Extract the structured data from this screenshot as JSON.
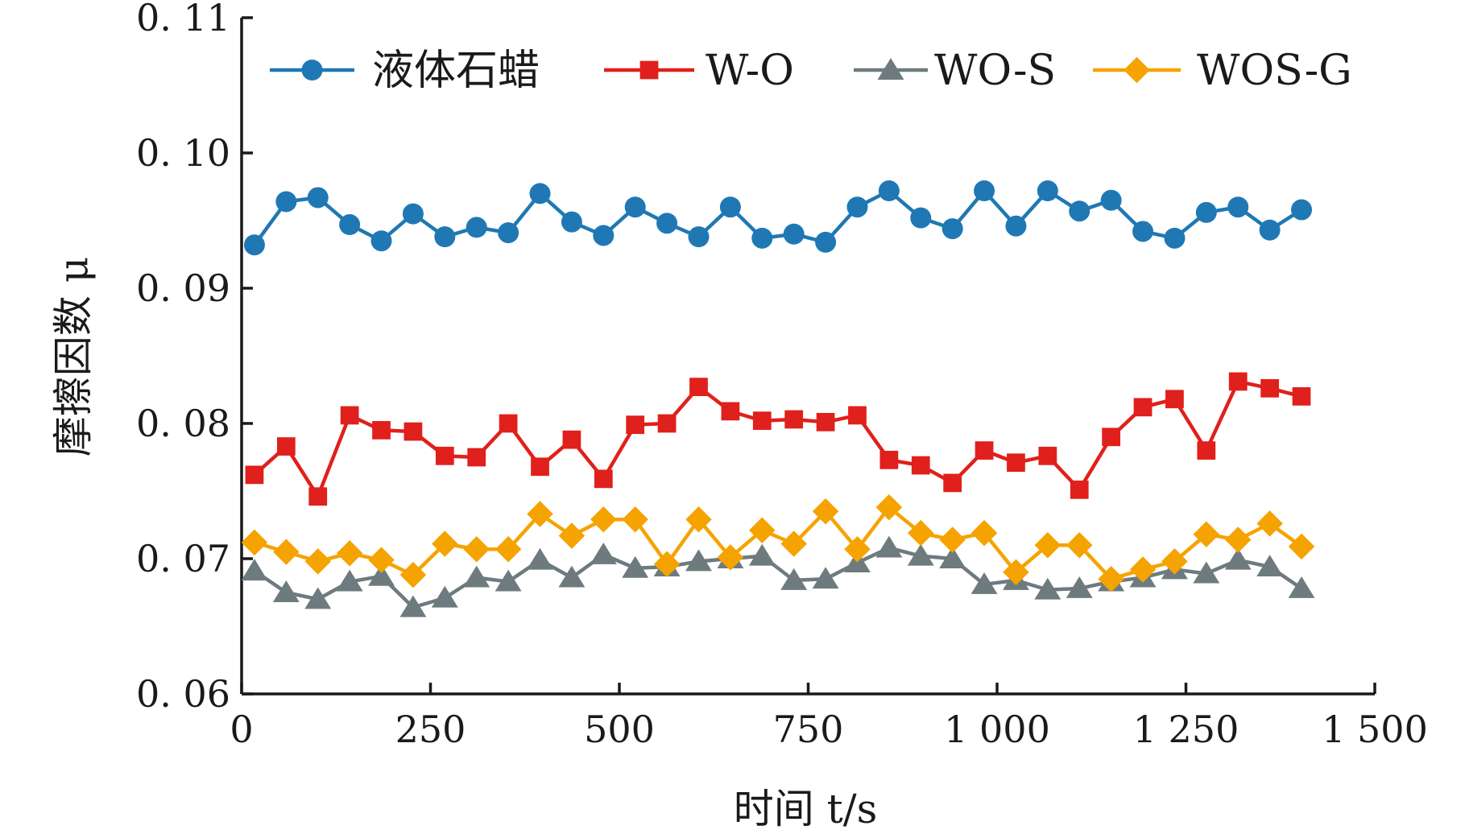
{
  "chart_data": {
    "type": "line",
    "xlabel": "时间 t/s",
    "ylabel": "摩擦因数 μ",
    "xlim": [
      0,
      1500
    ],
    "ylim": [
      0.06,
      0.11
    ],
    "x_ticks": [
      0,
      250,
      500,
      750,
      1000,
      1250,
      1500
    ],
    "x_tick_labels": [
      "0",
      "250",
      "500",
      "750",
      "1 000",
      "1 250",
      "1 500"
    ],
    "y_ticks": [
      0.06,
      0.07,
      0.08,
      0.09,
      0.1,
      0.11
    ],
    "y_tick_labels": [
      "0. 06",
      "0. 07",
      "0. 08",
      "0. 09",
      "0. 10",
      "0. 11"
    ],
    "grid": false,
    "legend_position": "top",
    "x": [
      17,
      59,
      101,
      143,
      185,
      227,
      269,
      311,
      353,
      395,
      437,
      479,
      521,
      563,
      605,
      647,
      689,
      731,
      773,
      815,
      857,
      899,
      941,
      983,
      1025,
      1067,
      1109,
      1151,
      1193,
      1235,
      1277,
      1319,
      1361,
      1403
    ],
    "series": [
      {
        "name": "液体石蜡",
        "color": "#1f78b4",
        "marker": "circle",
        "values": [
          0.0932,
          0.0964,
          0.0967,
          0.0947,
          0.0935,
          0.0955,
          0.0938,
          0.0945,
          0.0941,
          0.097,
          0.0949,
          0.0939,
          0.096,
          0.0948,
          0.0938,
          0.096,
          0.0937,
          0.094,
          0.0934,
          0.096,
          0.0972,
          0.0952,
          0.0944,
          0.0972,
          0.0946,
          0.0972,
          0.0957,
          0.0965,
          0.0942,
          0.0937,
          0.0956,
          0.096,
          0.0943,
          0.0958
        ]
      },
      {
        "name": "W-O",
        "color": "#e0201c",
        "marker": "square",
        "values": [
          0.0762,
          0.0783,
          0.0746,
          0.0806,
          0.0795,
          0.0794,
          0.0776,
          0.0775,
          0.08,
          0.0768,
          0.0788,
          0.0759,
          0.0799,
          0.08,
          0.0827,
          0.0809,
          0.0802,
          0.0803,
          0.0801,
          0.0806,
          0.0773,
          0.0769,
          0.0756,
          0.078,
          0.0771,
          0.0776,
          0.0751,
          0.079,
          0.0812,
          0.0818,
          0.078,
          0.0831,
          0.0826,
          0.082
        ]
      },
      {
        "name": "WO-S",
        "color": "#6e7b7e",
        "marker": "triangle",
        "values": [
          0.0691,
          0.0675,
          0.067,
          0.0683,
          0.0687,
          0.0664,
          0.0671,
          0.0686,
          0.0683,
          0.0699,
          0.0686,
          0.0703,
          0.0693,
          0.0694,
          0.0698,
          0.07,
          0.0702,
          0.0684,
          0.0685,
          0.0697,
          0.0708,
          0.0702,
          0.07,
          0.0681,
          0.0684,
          0.0677,
          0.0678,
          0.0683,
          0.0686,
          0.0692,
          0.0689,
          0.0699,
          0.0694,
          0.0678
        ]
      },
      {
        "name": "WOS-G",
        "color": "#f5a300",
        "marker": "diamond",
        "values": [
          0.0712,
          0.0705,
          0.0698,
          0.0704,
          0.0699,
          0.0688,
          0.0711,
          0.0707,
          0.0707,
          0.0733,
          0.0717,
          0.0729,
          0.0729,
          0.0696,
          0.0729,
          0.0701,
          0.0721,
          0.0711,
          0.0735,
          0.0707,
          0.0738,
          0.0719,
          0.0714,
          0.0719,
          0.069,
          0.071,
          0.071,
          0.0685,
          0.0692,
          0.0698,
          0.0718,
          0.0714,
          0.0726,
          0.0709
        ]
      }
    ]
  }
}
